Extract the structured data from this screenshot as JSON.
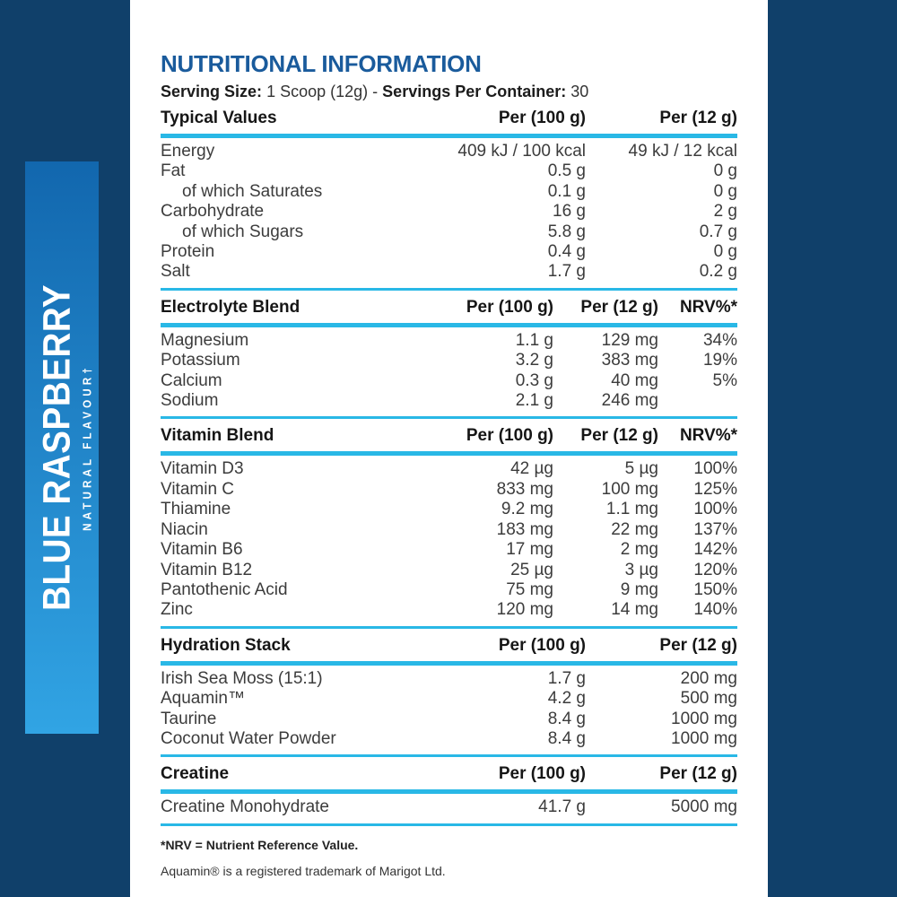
{
  "colors": {
    "panel_navy": "#10406a",
    "strip_gradient_top": "#1267ae",
    "strip_gradient_bottom": "#31a4e4",
    "divider_cyan": "#29b8e6",
    "title_blue": "#1a5b9c"
  },
  "flavor_strip": {
    "flavor": "BLUE RASPBERRY",
    "subtitle": "NATURAL FLAVOUR†"
  },
  "header": {
    "title": "NUTRITIONAL INFORMATION",
    "serving_size_label": "Serving Size:",
    "serving_size_value": "1 Scoop (12g)",
    "separator": "-",
    "servings_per_container_label": "Servings Per Container:",
    "servings_per_container_value": "30"
  },
  "sections": [
    {
      "columns": [
        "Typical Values",
        "Per (100 g)",
        "Per (12 g)"
      ],
      "rows": [
        {
          "label": "Energy",
          "indent": false,
          "values": [
            "409 kJ / 100 kcal",
            "49 kJ / 12 kcal"
          ]
        },
        {
          "label": "Fat",
          "indent": false,
          "values": [
            "0.5 g",
            "0 g"
          ]
        },
        {
          "label": "of which Saturates",
          "indent": true,
          "values": [
            "0.1 g",
            "0 g"
          ]
        },
        {
          "label": "Carbohydrate",
          "indent": false,
          "values": [
            "16 g",
            "2 g"
          ]
        },
        {
          "label": "of which Sugars",
          "indent": true,
          "values": [
            "5.8 g",
            "0.7 g"
          ]
        },
        {
          "label": "Protein",
          "indent": false,
          "values": [
            "0.4 g",
            "0 g"
          ]
        },
        {
          "label": "Salt",
          "indent": false,
          "values": [
            "1.7 g",
            "0.2 g"
          ]
        }
      ]
    },
    {
      "columns": [
        "Electrolyte Blend",
        "Per (100 g)",
        "Per (12 g)",
        "NRV%*"
      ],
      "rows": [
        {
          "label": "Magnesium",
          "indent": false,
          "values": [
            "1.1 g",
            "129 mg",
            "34%"
          ]
        },
        {
          "label": "Potassium",
          "indent": false,
          "values": [
            "3.2 g",
            "383 mg",
            "19%"
          ]
        },
        {
          "label": "Calcium",
          "indent": false,
          "values": [
            "0.3 g",
            "40 mg",
            "5%"
          ]
        },
        {
          "label": "Sodium",
          "indent": false,
          "values": [
            "2.1 g",
            "246 mg",
            ""
          ]
        }
      ]
    },
    {
      "columns": [
        "Vitamin Blend",
        "Per (100 g)",
        "Per (12 g)",
        "NRV%*"
      ],
      "rows": [
        {
          "label": "Vitamin D3",
          "indent": false,
          "values": [
            "42 µg",
            "5 µg",
            "100%"
          ]
        },
        {
          "label": "Vitamin C",
          "indent": false,
          "values": [
            "833 mg",
            "100 mg",
            "125%"
          ]
        },
        {
          "label": "Thiamine",
          "indent": false,
          "values": [
            "9.2 mg",
            "1.1 mg",
            "100%"
          ]
        },
        {
          "label": "Niacin",
          "indent": false,
          "values": [
            "183 mg",
            "22 mg",
            "137%"
          ]
        },
        {
          "label": "Vitamin B6",
          "indent": false,
          "values": [
            "17 mg",
            "2 mg",
            "142%"
          ]
        },
        {
          "label": "Vitamin B12",
          "indent": false,
          "values": [
            "25 µg",
            "3 µg",
            "120%"
          ]
        },
        {
          "label": "Pantothenic Acid",
          "indent": false,
          "values": [
            "75 mg",
            "9 mg",
            "150%"
          ]
        },
        {
          "label": "Zinc",
          "indent": false,
          "values": [
            "120 mg",
            "14 mg",
            "140%"
          ]
        }
      ]
    },
    {
      "columns": [
        "Hydration Stack",
        "Per (100 g)",
        "Per (12 g)"
      ],
      "rows": [
        {
          "label": "Irish Sea Moss (15:1)",
          "indent": false,
          "values": [
            "1.7 g",
            "200 mg"
          ]
        },
        {
          "label": "Aquamin™",
          "indent": false,
          "values": [
            "4.2 g",
            "500 mg"
          ]
        },
        {
          "label": "Taurine",
          "indent": false,
          "values": [
            "8.4 g",
            "1000 mg"
          ]
        },
        {
          "label": "Coconut Water Powder",
          "indent": false,
          "values": [
            "8.4 g",
            "1000 mg"
          ]
        }
      ]
    },
    {
      "columns": [
        "Creatine",
        "Per (100 g)",
        "Per (12 g)"
      ],
      "rows": [
        {
          "label": "Creatine Monohydrate",
          "indent": false,
          "values": [
            "41.7 g",
            "5000 mg"
          ]
        }
      ]
    }
  ],
  "footnotes": {
    "nrv": "*NRV = Nutrient Reference Value.",
    "trademark": "Aquamin® is a registered trademark of Marigot Ltd."
  }
}
